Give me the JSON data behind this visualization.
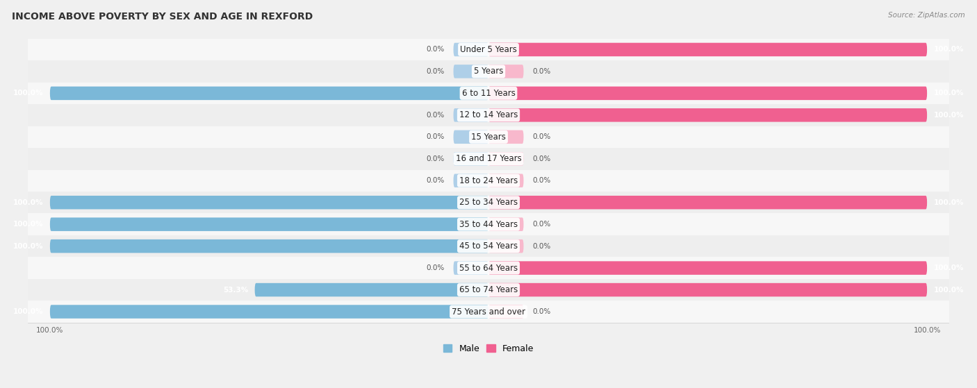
{
  "title": "INCOME ABOVE POVERTY BY SEX AND AGE IN REXFORD",
  "source": "Source: ZipAtlas.com",
  "categories": [
    "Under 5 Years",
    "5 Years",
    "6 to 11 Years",
    "12 to 14 Years",
    "15 Years",
    "16 and 17 Years",
    "18 to 24 Years",
    "25 to 34 Years",
    "35 to 44 Years",
    "45 to 54 Years",
    "55 to 64 Years",
    "65 to 74 Years",
    "75 Years and over"
  ],
  "male_values": [
    0.0,
    0.0,
    100.0,
    0.0,
    0.0,
    0.0,
    0.0,
    100.0,
    100.0,
    100.0,
    0.0,
    53.3,
    100.0
  ],
  "female_values": [
    100.0,
    0.0,
    100.0,
    100.0,
    0.0,
    0.0,
    0.0,
    100.0,
    0.0,
    0.0,
    100.0,
    100.0,
    0.0
  ],
  "male_color_full": "#7BB8D8",
  "male_color_stub": "#AECFE8",
  "female_color_full": "#F06090",
  "female_color_stub": "#F8B8CC",
  "row_bg_light": "#f7f7f7",
  "row_bg_dark": "#eeeeee",
  "fig_bg": "#f0f0f0",
  "title_fontsize": 10,
  "label_fontsize": 8.5,
  "value_fontsize": 7.5,
  "axis_label_fontsize": 7.5,
  "legend_fontsize": 9
}
